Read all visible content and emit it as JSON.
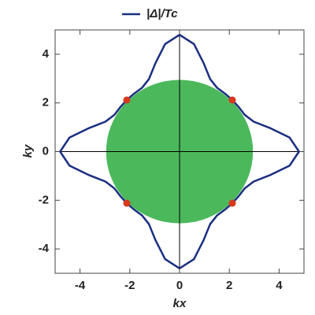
{
  "chart_data": {
    "type": "polar-curve",
    "xlabel": "kx",
    "ylabel": "ky",
    "xlim": [
      -5,
      5
    ],
    "ylim": [
      -5,
      5
    ],
    "xticks": [
      -4,
      -2,
      0,
      2,
      4
    ],
    "yticks": [
      -4,
      -2,
      0,
      2,
      4
    ],
    "legend": "top",
    "series": [
      {
        "name": "|Δ|/Tc",
        "color": "#1a2f80",
        "x": [
          4.8,
          4.42,
          3.63,
          2.98,
          2.62,
          2.38,
          2.12,
          1.83,
          1.51,
          1.23,
          0.97,
          0.58,
          0,
          -0.58,
          -0.97,
          -1.23,
          -1.51,
          -1.83,
          -2.12,
          -2.38,
          -2.62,
          -2.98,
          -3.63,
          -4.42,
          -4.8,
          -4.42,
          -3.63,
          -2.98,
          -2.62,
          -2.38,
          -2.12,
          -1.83,
          -1.51,
          -1.23,
          -0.97,
          -0.58,
          0,
          0.58,
          0.97,
          1.23,
          1.51,
          1.83,
          2.12,
          2.38,
          2.62,
          2.98,
          3.63,
          4.42,
          4.8
        ],
        "values": [
          0,
          0.58,
          0.97,
          1.23,
          1.51,
          1.83,
          2.12,
          2.38,
          2.62,
          2.98,
          3.63,
          4.42,
          4.8,
          4.42,
          3.63,
          2.98,
          2.62,
          2.38,
          2.12,
          1.83,
          1.51,
          1.23,
          0.97,
          0.58,
          0,
          -0.58,
          -0.97,
          -1.23,
          -1.51,
          -1.83,
          -2.12,
          -2.38,
          -2.62,
          -2.98,
          -3.63,
          -4.42,
          -4.8,
          -4.42,
          -3.63,
          -2.98,
          -2.62,
          -2.38,
          -2.12,
          -1.83,
          -1.51,
          -1.23,
          -0.97,
          -0.58,
          0
        ]
      }
    ],
    "disk": {
      "radius": 2.95,
      "color": "#4cb85c"
    },
    "points": {
      "color": "#d9381e",
      "x": [
        2.12,
        -2.12,
        -2.12,
        2.12
      ],
      "values": [
        2.12,
        2.12,
        -2.12,
        -2.12
      ]
    }
  }
}
